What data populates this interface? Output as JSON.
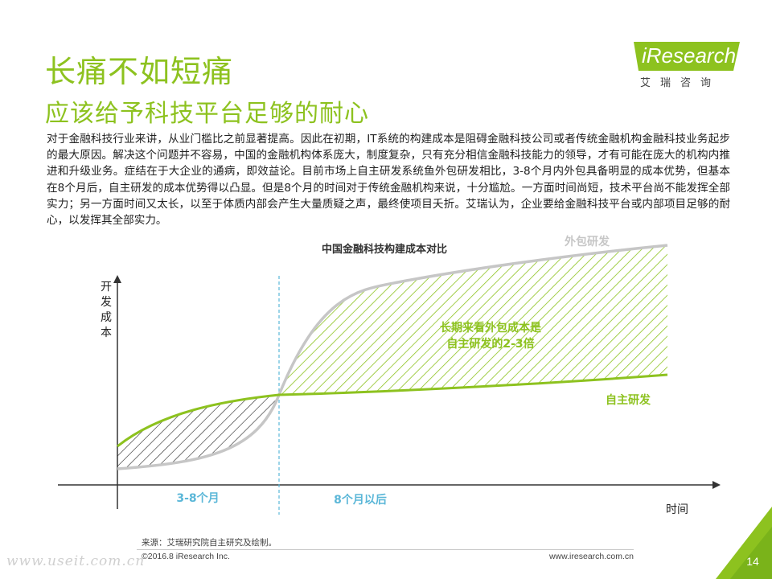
{
  "header": {
    "title": "长痛不如短痛",
    "subtitle": "应该给予科技平台足够的耐心"
  },
  "logo": {
    "name": "iResearch",
    "cn": "艾瑞咨询"
  },
  "body": {
    "paragraph": "对于金融科技行业来讲，从业门槛比之前显著提高。因此在初期，IT系统的构建成本是阻碍金融科技公司或者传统金融机构金融科技业务起步的最大原因。解决这个问题并不容易，中国的金融机构体系庞大，制度复杂，只有充分相信金融科技能力的领导，才有可能在庞大的机构内推进和升级业务。症结在于大企业的通病，即效益论。目前市场上自主研发系统鱼外包研发相比，3-8个月内外包具备明显的成本优势，但基本在8个月后，自主研发的成本优势得以凸显。但是8个月的时间对于传统金融机构来说，十分尴尬。一方面时间尚短，技术平台尚不能发挥全部实力；另一方面时间又太长，以至于体质内部会产生大量质疑之声，最终使项目夭折。艾瑞认为，企业要给金融科技平台或内部项目足够的耐心，以发挥其全部实力。"
  },
  "diagram": {
    "title": "中国金融科技构建成本对比",
    "y_label": "开发成本",
    "x_label": "时间",
    "outsourcing_label": "外包研发",
    "inhouse_label": "自主研发",
    "annotation_line1": "长期来看外包成本是",
    "annotation_line2": "自主研发的2-3倍",
    "period_early": "3-8个月",
    "period_late": "8个月以后"
  },
  "colors": {
    "accent_green": "#8dc21f",
    "outsourcing_gray": "#c6c6c6",
    "dashed_blue": "#5bb7d8"
  },
  "footer": {
    "source": "来源：艾瑞研究院自主研究及绘制。",
    "copyright": "©2016.8 iResearch Inc.",
    "website": "www.iresearch.com.cn",
    "page_number": "14",
    "watermark": "www.useit.com.cn"
  }
}
